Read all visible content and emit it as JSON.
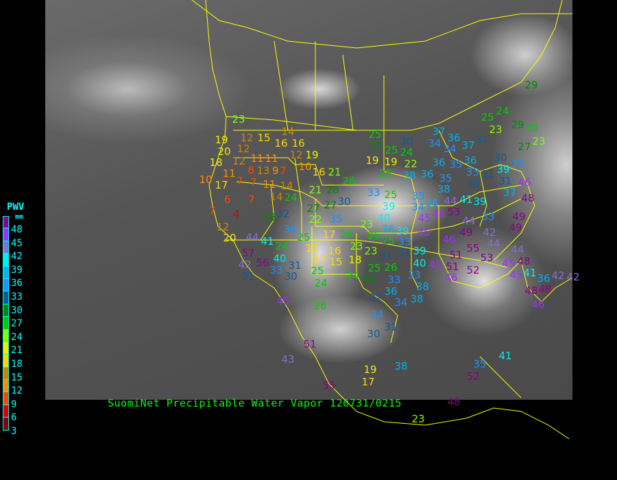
{
  "title": "SuomiNet Precipitable Water Vapor 120731/0215",
  "legend": {
    "title": "PWV",
    "unit": "mm",
    "labels": [
      "48",
      "45",
      "42",
      "39",
      "36",
      "33",
      "30",
      "27",
      "24",
      "21",
      "18",
      "15",
      "12",
      "9",
      "6",
      "3"
    ],
    "colors": [
      "#8b008b",
      "#9b30ff",
      "#8470d0",
      "#00eeee",
      "#00b2ee",
      "#1e90ff",
      "#105a9a",
      "#008b00",
      "#00cd00",
      "#7fff00",
      "#eeee00",
      "#ffd700",
      "#cd8500",
      "#ff8c00",
      "#ff4500",
      "#dd0000",
      "#8b0000"
    ]
  },
  "map": {
    "background": "GOES infrared satellite image, North America",
    "border_color": "#ffff00"
  },
  "stations": [
    19,
    12,
    15,
    14,
    20,
    12,
    16,
    16,
    18,
    12,
    11,
    11,
    12,
    19,
    8,
    10,
    13,
    9,
    7,
    16,
    21,
    11,
    10,
    17,
    7,
    7,
    11,
    14,
    6,
    7,
    14,
    24,
    21,
    28,
    26,
    7,
    4,
    28,
    32,
    27,
    27,
    30,
    22,
    35,
    12,
    20,
    34,
    25,
    44,
    41,
    17,
    24,
    57,
    24,
    15,
    17,
    16,
    40,
    56,
    42,
    15,
    31,
    31,
    33,
    30,
    25,
    24,
    18,
    23,
    23,
    25,
    25,
    24,
    28,
    25,
    27,
    25,
    24,
    30,
    19,
    19,
    22,
    25,
    37,
    34,
    36,
    34,
    37,
    31,
    36,
    35,
    36,
    33,
    38,
    36,
    35,
    38,
    30,
    31,
    30,
    39,
    35,
    31,
    37,
    23,
    29,
    25,
    27,
    46,
    48,
    33,
    25,
    39,
    40,
    36,
    39,
    33,
    35,
    34,
    36,
    44,
    41,
    39,
    53,
    45,
    46,
    45,
    46,
    49,
    44,
    33,
    42,
    44,
    49,
    49,
    25,
    31,
    23,
    26,
    31,
    39,
    40,
    45,
    51,
    51,
    55,
    53,
    52,
    44,
    45,
    48,
    46,
    33,
    33,
    38,
    38,
    36,
    34,
    32,
    41,
    36,
    42,
    45,
    48,
    48,
    46,
    34,
    31,
    30,
    26,
    45,
    51,
    43,
    55,
    19,
    17,
    38,
    35,
    41,
    52,
    48,
    23,
    42,
    29,
    24,
    25,
    23,
    23
  ]
}
